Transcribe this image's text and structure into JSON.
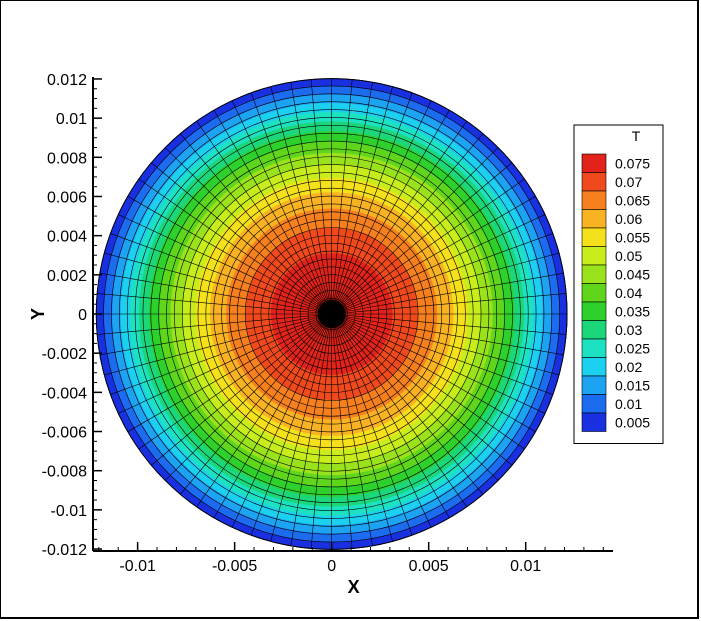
{
  "chart_data": {
    "type": "contour",
    "title": "",
    "xlabel": "X",
    "ylabel": "Y",
    "xlim": [
      -0.0123,
      0.0145
    ],
    "ylim": [
      -0.0121,
      0.0121
    ],
    "x_ticks": [
      -0.01,
      -0.005,
      0,
      0.005,
      0.01
    ],
    "x_tick_labels": [
      "-0.01",
      "-0.005",
      "0",
      "0.005",
      "0.01"
    ],
    "y_ticks": [
      -0.012,
      -0.01,
      -0.008,
      -0.006,
      -0.004,
      -0.002,
      0,
      0.002,
      0.004,
      0.006,
      0.008,
      0.01,
      0.012
    ],
    "y_tick_labels": [
      "-0.012",
      "-0.01",
      "-0.008",
      "-0.006",
      "-0.004",
      "-0.002",
      "0",
      "0.002",
      "0.004",
      "0.006",
      "0.008",
      "0.01",
      "0.012"
    ],
    "domain": {
      "shape": "disk",
      "center": [
        0,
        0
      ],
      "radius": 0.0121
    },
    "field": {
      "variable": "T",
      "max_at_center": 0.078,
      "min_at_edge": 0.003,
      "profile": "radial"
    },
    "mesh": {
      "radial_lines": 72,
      "rings": 30
    },
    "grid": false,
    "legend": {
      "title": "T",
      "placement": "right",
      "levels": [
        {
          "label": "0.075",
          "color": "#e2231a"
        },
        {
          "label": "0.07",
          "color": "#f04a1c"
        },
        {
          "label": "0.065",
          "color": "#f7801e"
        },
        {
          "label": "0.06",
          "color": "#f9b322"
        },
        {
          "label": "0.055",
          "color": "#f4e11c"
        },
        {
          "label": "0.05",
          "color": "#c8ed1c"
        },
        {
          "label": "0.045",
          "color": "#9ae21c"
        },
        {
          "label": "0.04",
          "color": "#5fd61c"
        },
        {
          "label": "0.035",
          "color": "#2ed12c"
        },
        {
          "label": "0.03",
          "color": "#1cd67a"
        },
        {
          "label": "0.025",
          "color": "#1ce2c2"
        },
        {
          "label": "0.02",
          "color": "#1cd0f0"
        },
        {
          "label": "0.015",
          "color": "#1ca4f2"
        },
        {
          "label": "0.01",
          "color": "#1c6cf0"
        },
        {
          "label": "0.005",
          "color": "#1830e0"
        }
      ]
    }
  }
}
